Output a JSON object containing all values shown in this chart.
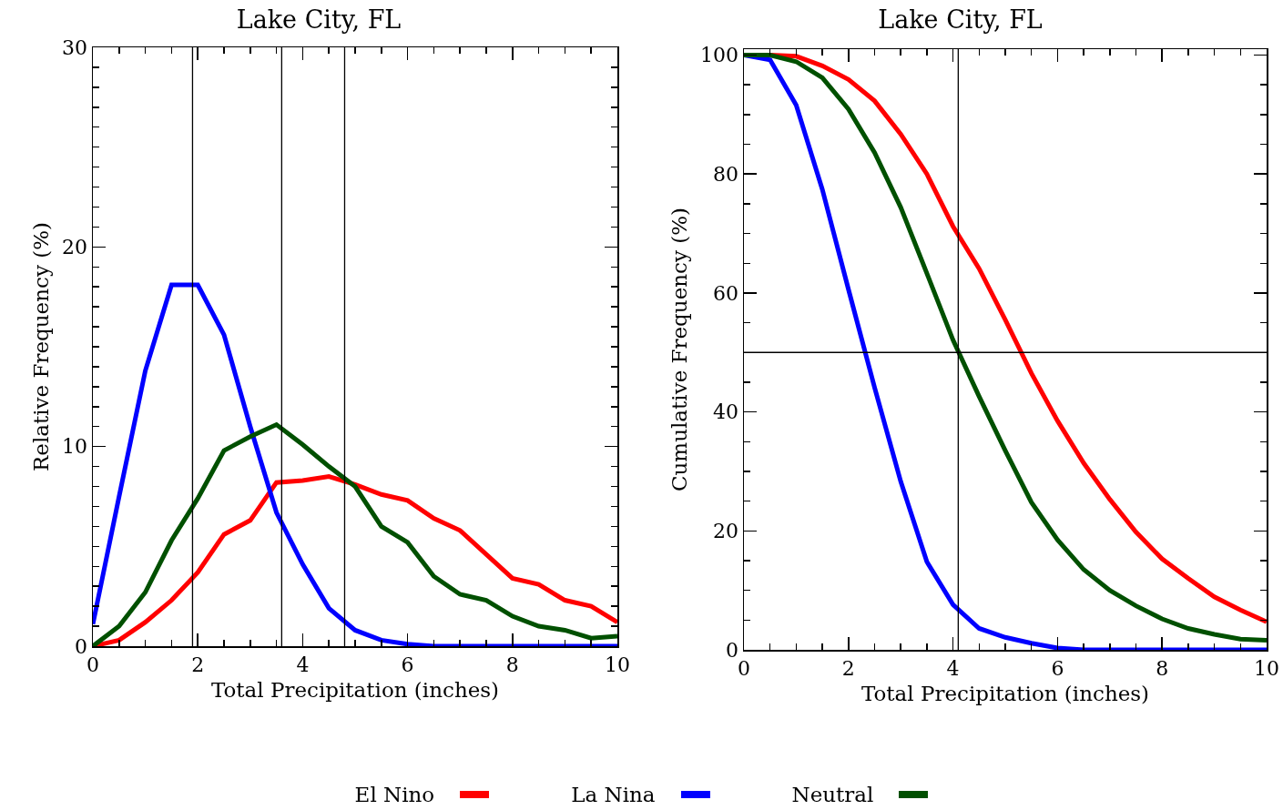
{
  "chart_data": [
    {
      "type": "line",
      "title": "Lake City, FL",
      "xlabel": "Total Precipitation (inches)",
      "ylabel": "Relative Frequency (%)",
      "x": [
        0,
        0.5,
        1,
        1.5,
        2,
        2.5,
        3,
        3.5,
        4,
        4.5,
        5,
        5.5,
        6,
        6.5,
        7,
        7.5,
        8,
        8.5,
        9,
        9.5,
        10
      ],
      "series": [
        {
          "name": "El Nino",
          "color": "#ff0000",
          "values": [
            0,
            0.3,
            1.2,
            2.3,
            3.7,
            5.6,
            6.3,
            8.2,
            8.3,
            8.5,
            8.1,
            7.6,
            7.3,
            6.4,
            5.8,
            4.6,
            3.4,
            3.1,
            2.3,
            2.0,
            1.2
          ]
        },
        {
          "name": "La Nina",
          "color": "#0000ff",
          "values": [
            1.1,
            7.5,
            13.8,
            18.1,
            18.1,
            15.6,
            11.0,
            6.7,
            4.1,
            1.9,
            0.8,
            0.3,
            0.1,
            0,
            0,
            0,
            0,
            0,
            0,
            0,
            0
          ]
        },
        {
          "name": "Neutral",
          "color": "#005000",
          "values": [
            0,
            1.0,
            2.7,
            5.3,
            7.4,
            9.8,
            10.5,
            11.1,
            10.1,
            9.0,
            8.0,
            6.0,
            5.2,
            3.5,
            2.6,
            2.3,
            1.5,
            1.0,
            0.8,
            0.4,
            0.5
          ]
        }
      ],
      "xlim": [
        0,
        10
      ],
      "xticks": [
        0,
        2,
        4,
        6,
        8,
        10
      ],
      "ylim": [
        0,
        30
      ],
      "yticks": [
        0,
        10,
        20,
        30
      ],
      "ref_lines": [
        {
          "axis": "x",
          "value": 1.9,
          "color": "#000000"
        },
        {
          "axis": "x",
          "value": 3.6,
          "color": "#000000"
        },
        {
          "axis": "x",
          "value": 4.8,
          "color": "#000000"
        }
      ],
      "legend": "bottom"
    },
    {
      "type": "line",
      "title": "Lake City, FL",
      "xlabel": "Total Precipitation (inches)",
      "ylabel": "Cumulative Frequency (%)",
      "x": [
        0,
        0.5,
        1,
        1.5,
        2,
        2.5,
        3,
        3.5,
        4,
        4.5,
        5,
        5.5,
        6,
        6.5,
        7,
        7.5,
        8,
        8.5,
        9,
        9.5,
        10
      ],
      "series": [
        {
          "color": "#ff0000",
          "values": [
            100,
            100,
            99.8,
            98.2,
            95.9,
            92.3,
            86.7,
            80,
            71.2,
            64.1,
            55.5,
            46.5,
            38.5,
            31.4,
            25.3,
            19.8,
            15.3,
            12.0,
            8.9,
            6.7,
            4.7
          ]
        },
        {
          "color": "#0000ff",
          "values": [
            100,
            99.2,
            91.6,
            77.4,
            60.6,
            44.1,
            28.3,
            14.8,
            7.6,
            3.6,
            2.1,
            1.1,
            0.3,
            0,
            0,
            0,
            0,
            0,
            0,
            0,
            0
          ]
        },
        {
          "color": "#005000",
          "values": [
            100,
            100,
            98.9,
            96.2,
            90.9,
            83.6,
            74.4,
            63.3,
            52.1,
            42.6,
            33.5,
            24.8,
            18.5,
            13.5,
            10.0,
            7.4,
            5.2,
            3.6,
            2.6,
            1.8,
            1.6
          ]
        }
      ],
      "xlim": [
        0,
        10
      ],
      "xticks": [
        0,
        2,
        4,
        6,
        8,
        10
      ],
      "ylim": [
        0,
        101
      ],
      "yticks": [
        0,
        20,
        40,
        60,
        80,
        100
      ],
      "ref_lines": [
        {
          "axis": "x",
          "value": 4.1,
          "color": "#000000"
        },
        {
          "axis": "y",
          "value": 50,
          "color": "#000000"
        }
      ]
    }
  ]
}
